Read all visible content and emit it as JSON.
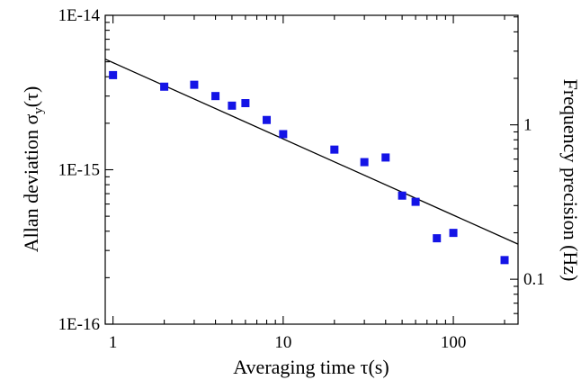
{
  "chart_data": {
    "type": "scatter",
    "xlabel": "Averaging time τ(s)",
    "ylabel": "Allan deviation σy(τ)",
    "ylabel_main": "Allan deviation  σ",
    "ylabel_sub": "y",
    "ylabel_tail": "(τ)",
    "y2label": "Frequency precision (Hz)",
    "x_scale": "log",
    "y_scale": "log",
    "xlim": [
      0.9,
      240
    ],
    "ylim": [
      1e-16,
      1e-14
    ],
    "y2lim": [
      0.0512,
      5.12
    ],
    "x_ticks": [
      {
        "value": 1,
        "label": "1"
      },
      {
        "value": 10,
        "label": "10"
      },
      {
        "value": 100,
        "label": "100"
      }
    ],
    "y_ticks": [
      {
        "value": 1e-16,
        "label": "1E-16"
      },
      {
        "value": 1e-15,
        "label": "1E-15"
      },
      {
        "value": 1e-14,
        "label": "1E-14"
      }
    ],
    "y2_ticks": [
      {
        "value": 0.1,
        "label": "0.1"
      },
      {
        "value": 1,
        "label": "1"
      }
    ],
    "grid": false,
    "series": [
      {
        "style": "markers",
        "color": "#1414e6",
        "points": [
          {
            "x": 1,
            "y": 4.1e-15
          },
          {
            "x": 2,
            "y": 3.45e-15
          },
          {
            "x": 3,
            "y": 3.55e-15
          },
          {
            "x": 4,
            "y": 3e-15
          },
          {
            "x": 5,
            "y": 2.6e-15
          },
          {
            "x": 6,
            "y": 2.7e-15
          },
          {
            "x": 8,
            "y": 2.1e-15
          },
          {
            "x": 10,
            "y": 1.7e-15
          },
          {
            "x": 20,
            "y": 1.35e-15
          },
          {
            "x": 30,
            "y": 1.12e-15
          },
          {
            "x": 40,
            "y": 1.2e-15
          },
          {
            "x": 50,
            "y": 6.8e-16
          },
          {
            "x": 60,
            "y": 6.2e-16
          },
          {
            "x": 80,
            "y": 3.6e-16
          },
          {
            "x": 100,
            "y": 3.9e-16
          },
          {
            "x": 200,
            "y": 2.6e-16
          }
        ]
      },
      {
        "style": "line",
        "color": "#000000",
        "points": [
          {
            "x": 0.9,
            "y": 5.2e-15
          },
          {
            "x": 240,
            "y": 3.3e-16
          }
        ]
      }
    ]
  }
}
